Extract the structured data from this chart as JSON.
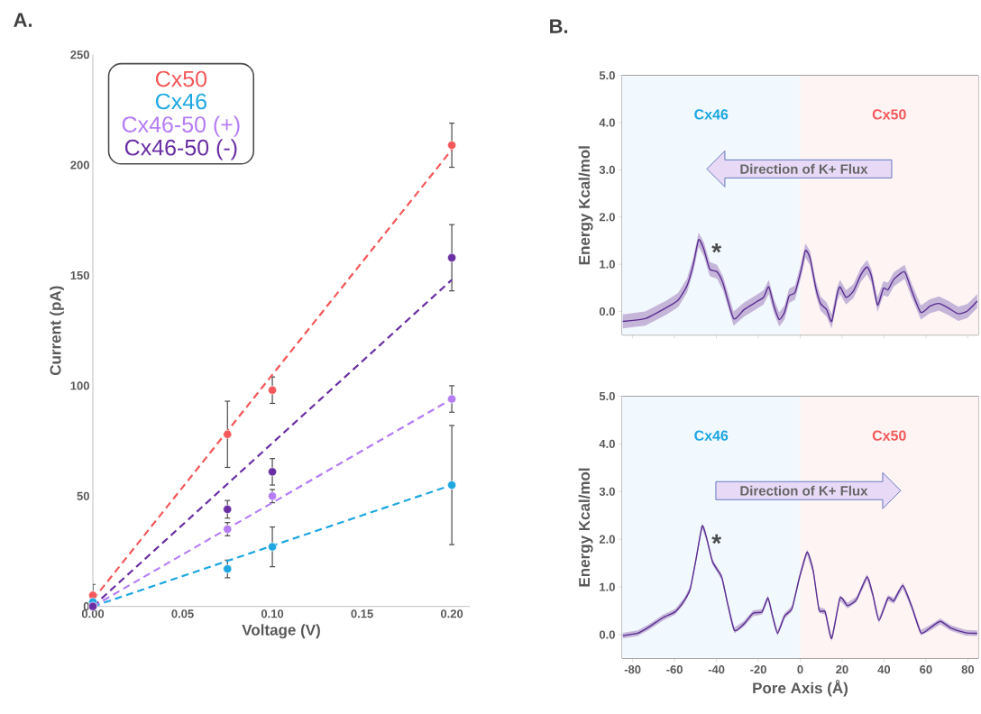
{
  "chart_data": [
    {
      "type": "scatter",
      "title": "A.",
      "xlabel": "Voltage (V)",
      "ylabel": "Current (pA)",
      "xlim": [
        0,
        0.21
      ],
      "ylim": [
        0,
        250
      ],
      "xticks": [
        {
          "value": 0,
          "label": "0.00"
        },
        {
          "value": 0.05,
          "label": "0.05"
        },
        {
          "value": 0.1,
          "label": "0.10"
        },
        {
          "value": 0.15,
          "label": "0.15"
        },
        {
          "value": 0.2,
          "label": "0.20"
        }
      ],
      "yticks": [
        0,
        50,
        100,
        150,
        200,
        250
      ],
      "legend": "top left",
      "x": [
        0,
        0.075,
        0.1,
        0.2
      ],
      "series": [
        {
          "name": "Cx50",
          "color": "#f4585a",
          "marker": "circle",
          "values": [
            5,
            78,
            98,
            209
          ],
          "errors": [
            5,
            15,
            6,
            10
          ]
        },
        {
          "name": "Cx46",
          "color": "#1ea7e1",
          "marker": "circle",
          "values": [
            2,
            17,
            27,
            55
          ],
          "errors": [
            null,
            4,
            9,
            27
          ]
        },
        {
          "name": "Cx46-50 (+)",
          "color": "#b57cf5",
          "marker": "circle",
          "values": [
            0,
            35,
            50,
            94
          ],
          "errors": [
            null,
            3,
            3,
            6
          ]
        },
        {
          "name": "Cx46-50 (-)",
          "color": "#6a2fa3",
          "marker": "circle",
          "values": [
            0,
            44,
            61,
            158
          ],
          "errors": [
            null,
            4,
            6,
            15
          ]
        },
        {
          "type": "line",
          "color": "#f4585a",
          "line_style": "dashed",
          "x": [
            0,
            0.2
          ],
          "values": [
            3,
            207
          ]
        },
        {
          "type": "line",
          "color": "#1ea7e1",
          "line_style": "dashed",
          "x": [
            0,
            0.2
          ],
          "values": [
            0,
            55
          ]
        },
        {
          "type": "line",
          "color": "#b57cf5",
          "line_style": "dashed",
          "x": [
            0,
            0.2
          ],
          "values": [
            0,
            94
          ]
        },
        {
          "type": "line",
          "color": "#6a2fa3",
          "line_style": "dashed",
          "x": [
            0,
            0.2
          ],
          "values": [
            0,
            148
          ]
        }
      ]
    },
    {
      "type": "line",
      "title": "B.",
      "ylabel": "Energy Kcal/mol",
      "xlim": [
        -85,
        85
      ],
      "ylim": [
        -0.5,
        5.0
      ],
      "tick_labels": "y",
      "xticks": [
        -80,
        -60,
        -40,
        -20,
        0,
        20,
        40,
        60,
        80
      ],
      "yticks": [
        {
          "value": 0,
          "label": "0.0"
        },
        {
          "value": 1,
          "label": "1.0"
        },
        {
          "value": 2,
          "label": "2.0"
        },
        {
          "value": 3,
          "label": "3.0"
        },
        {
          "value": 4,
          "label": "4.0"
        },
        {
          "value": 5,
          "label": "5.0"
        }
      ],
      "bands": [
        {
          "axis": "x",
          "from": -85,
          "to": 0,
          "label": "Cx46",
          "color": "#f2f9fe"
        },
        {
          "axis": "x",
          "from": 0,
          "to": 85,
          "label": "Cx50",
          "color": "#fdf4f3"
        }
      ],
      "annotations": [
        "Direction of K+ Flux",
        "*"
      ],
      "series": [
        {
          "color": "#5a2d91",
          "x": [
            -84.7,
            -74,
            -64,
            -58.3,
            -54,
            -51,
            -48.5,
            -46,
            -43.2,
            -39.7,
            -36.8,
            -31.8,
            -26.8,
            -21,
            -17.5,
            -15,
            -12.5,
            -10,
            -7.5,
            -5.3,
            -2.5,
            0.4,
            2.5,
            4.7,
            7.5,
            9.7,
            12.6,
            15,
            17.6,
            19,
            21.9,
            25.4,
            29,
            31.9,
            34,
            36.9,
            39.7,
            41.9,
            44.7,
            49.8,
            53.3,
            57.6,
            61.9,
            66.2,
            70.5,
            75.5,
            79.8,
            84.5
          ],
          "values": [
            -0.21,
            -0.15,
            0.08,
            0.24,
            0.55,
            1.0,
            1.52,
            1.32,
            0.9,
            0.84,
            0.59,
            -0.15,
            0.04,
            0.2,
            0.3,
            0.52,
            0.11,
            -0.17,
            -0.02,
            0.33,
            0.4,
            0.87,
            1.29,
            1.13,
            0.49,
            0.17,
            0.04,
            -0.21,
            0.36,
            0.52,
            0.3,
            0.43,
            0.78,
            0.94,
            0.75,
            0.14,
            0.49,
            0.46,
            0.68,
            0.84,
            0.43,
            -0.02,
            0.11,
            0.17,
            0.08,
            -0.05,
            0.01,
            0.22
          ],
          "upper": [
            -0.06,
            0.0,
            0.23,
            0.39,
            0.7,
            1.15,
            1.67,
            1.47,
            1.05,
            0.99,
            0.74,
            0.0,
            0.19,
            0.35,
            0.45,
            0.67,
            0.26,
            -0.02,
            0.13,
            0.48,
            0.55,
            1.02,
            1.44,
            1.28,
            0.64,
            0.32,
            0.19,
            -0.06,
            0.51,
            0.67,
            0.45,
            0.58,
            0.93,
            1.09,
            0.9,
            0.29,
            0.64,
            0.61,
            0.83,
            0.99,
            0.58,
            0.13,
            0.26,
            0.32,
            0.23,
            0.1,
            0.16,
            0.37
          ],
          "lower": [
            -0.36,
            -0.3,
            -0.07,
            0.09,
            0.4,
            0.85,
            1.37,
            1.17,
            0.75,
            0.69,
            0.44,
            -0.3,
            -0.11,
            0.05,
            0.15,
            0.37,
            -0.04,
            -0.32,
            -0.17,
            0.18,
            0.25,
            0.72,
            1.14,
            0.98,
            0.34,
            0.02,
            -0.11,
            -0.36,
            0.21,
            0.37,
            0.15,
            0.28,
            0.63,
            0.79,
            0.6,
            -0.01,
            0.34,
            0.31,
            0.53,
            0.69,
            0.28,
            -0.17,
            -0.04,
            0.02,
            -0.07,
            -0.2,
            -0.14,
            0.07
          ]
        }
      ]
    },
    {
      "type": "line",
      "xlabel": "Pore Axis (Å)",
      "ylabel": "Energy Kcal/mol",
      "xlim": [
        -85,
        85
      ],
      "ylim": [
        -0.5,
        5.0
      ],
      "xticks": [
        -80,
        -60,
        -40,
        -20,
        0,
        20,
        40,
        60,
        80
      ],
      "yticks": [
        {
          "value": 0,
          "label": "0.0"
        },
        {
          "value": 1,
          "label": "1.0"
        },
        {
          "value": 2,
          "label": "2.0"
        },
        {
          "value": 3,
          "label": "3.0"
        },
        {
          "value": 4,
          "label": "4.0"
        },
        {
          "value": 5,
          "label": "5.0"
        }
      ],
      "bands": [
        {
          "axis": "x",
          "from": -85,
          "to": 0,
          "label": "Cx46",
          "color": "#f2f9fe"
        },
        {
          "axis": "x",
          "from": 0,
          "to": 85,
          "label": "Cx50",
          "color": "#fdf4f3"
        }
      ],
      "annotations": [
        "Direction of K+ Flux",
        "*"
      ],
      "series": [
        {
          "color": "#5a2d91",
          "x": [
            -84.7,
            -77.6,
            -72.6,
            -65.4,
            -59.7,
            -55.4,
            -52.5,
            -49.7,
            -46.8,
            -44.7,
            -41.8,
            -37.5,
            -34.6,
            -31.4,
            -26.8,
            -22.5,
            -18.2,
            -15.4,
            -13.2,
            -10.8,
            -7.5,
            -3.9,
            -0.3,
            3.3,
            6.2,
            9.0,
            11.9,
            15.0,
            19,
            22.6,
            26.9,
            31.9,
            34.7,
            37.6,
            41.9,
            44.7,
            49,
            53.3,
            57.6,
            61.9,
            66.9,
            71.9,
            79,
            84.5
          ],
          "values": [
            -0.02,
            0.03,
            0.15,
            0.36,
            0.48,
            0.71,
            0.96,
            1.59,
            2.28,
            2.03,
            1.52,
            1.21,
            0.64,
            0.09,
            0.23,
            0.45,
            0.48,
            0.77,
            0.39,
            0.03,
            0.39,
            0.55,
            1.21,
            1.73,
            1.34,
            0.52,
            0.48,
            -0.08,
            0.77,
            0.61,
            0.74,
            1.21,
            0.83,
            0.3,
            0.77,
            0.71,
            1.03,
            0.58,
            0.04,
            0.14,
            0.28,
            0.14,
            0.04,
            0.03
          ],
          "upper": [
            0.04,
            0.09,
            0.21,
            0.42,
            0.54,
            0.77,
            1.02,
            1.65,
            2.34,
            2.09,
            1.58,
            1.27,
            0.7,
            0.15,
            0.29,
            0.51,
            0.54,
            0.83,
            0.45,
            0.09,
            0.45,
            0.61,
            1.27,
            1.79,
            1.4,
            0.58,
            0.54,
            -0.02,
            0.83,
            0.67,
            0.8,
            1.27,
            0.89,
            0.36,
            0.83,
            0.77,
            1.09,
            0.64,
            0.1,
            0.2,
            0.34,
            0.2,
            0.1,
            0.09
          ],
          "lower": [
            -0.08,
            -0.03,
            0.09,
            0.3,
            0.42,
            0.65,
            0.9,
            1.53,
            2.22,
            1.97,
            1.46,
            1.15,
            0.58,
            0.03,
            0.17,
            0.39,
            0.42,
            0.71,
            0.33,
            -0.03,
            0.33,
            0.49,
            1.15,
            1.67,
            1.28,
            0.46,
            0.42,
            -0.14,
            0.71,
            0.55,
            0.68,
            1.15,
            0.77,
            0.24,
            0.71,
            0.65,
            0.97,
            0.52,
            -0.02,
            0.08,
            0.22,
            0.08,
            -0.02,
            -0.03
          ]
        }
      ]
    }
  ]
}
